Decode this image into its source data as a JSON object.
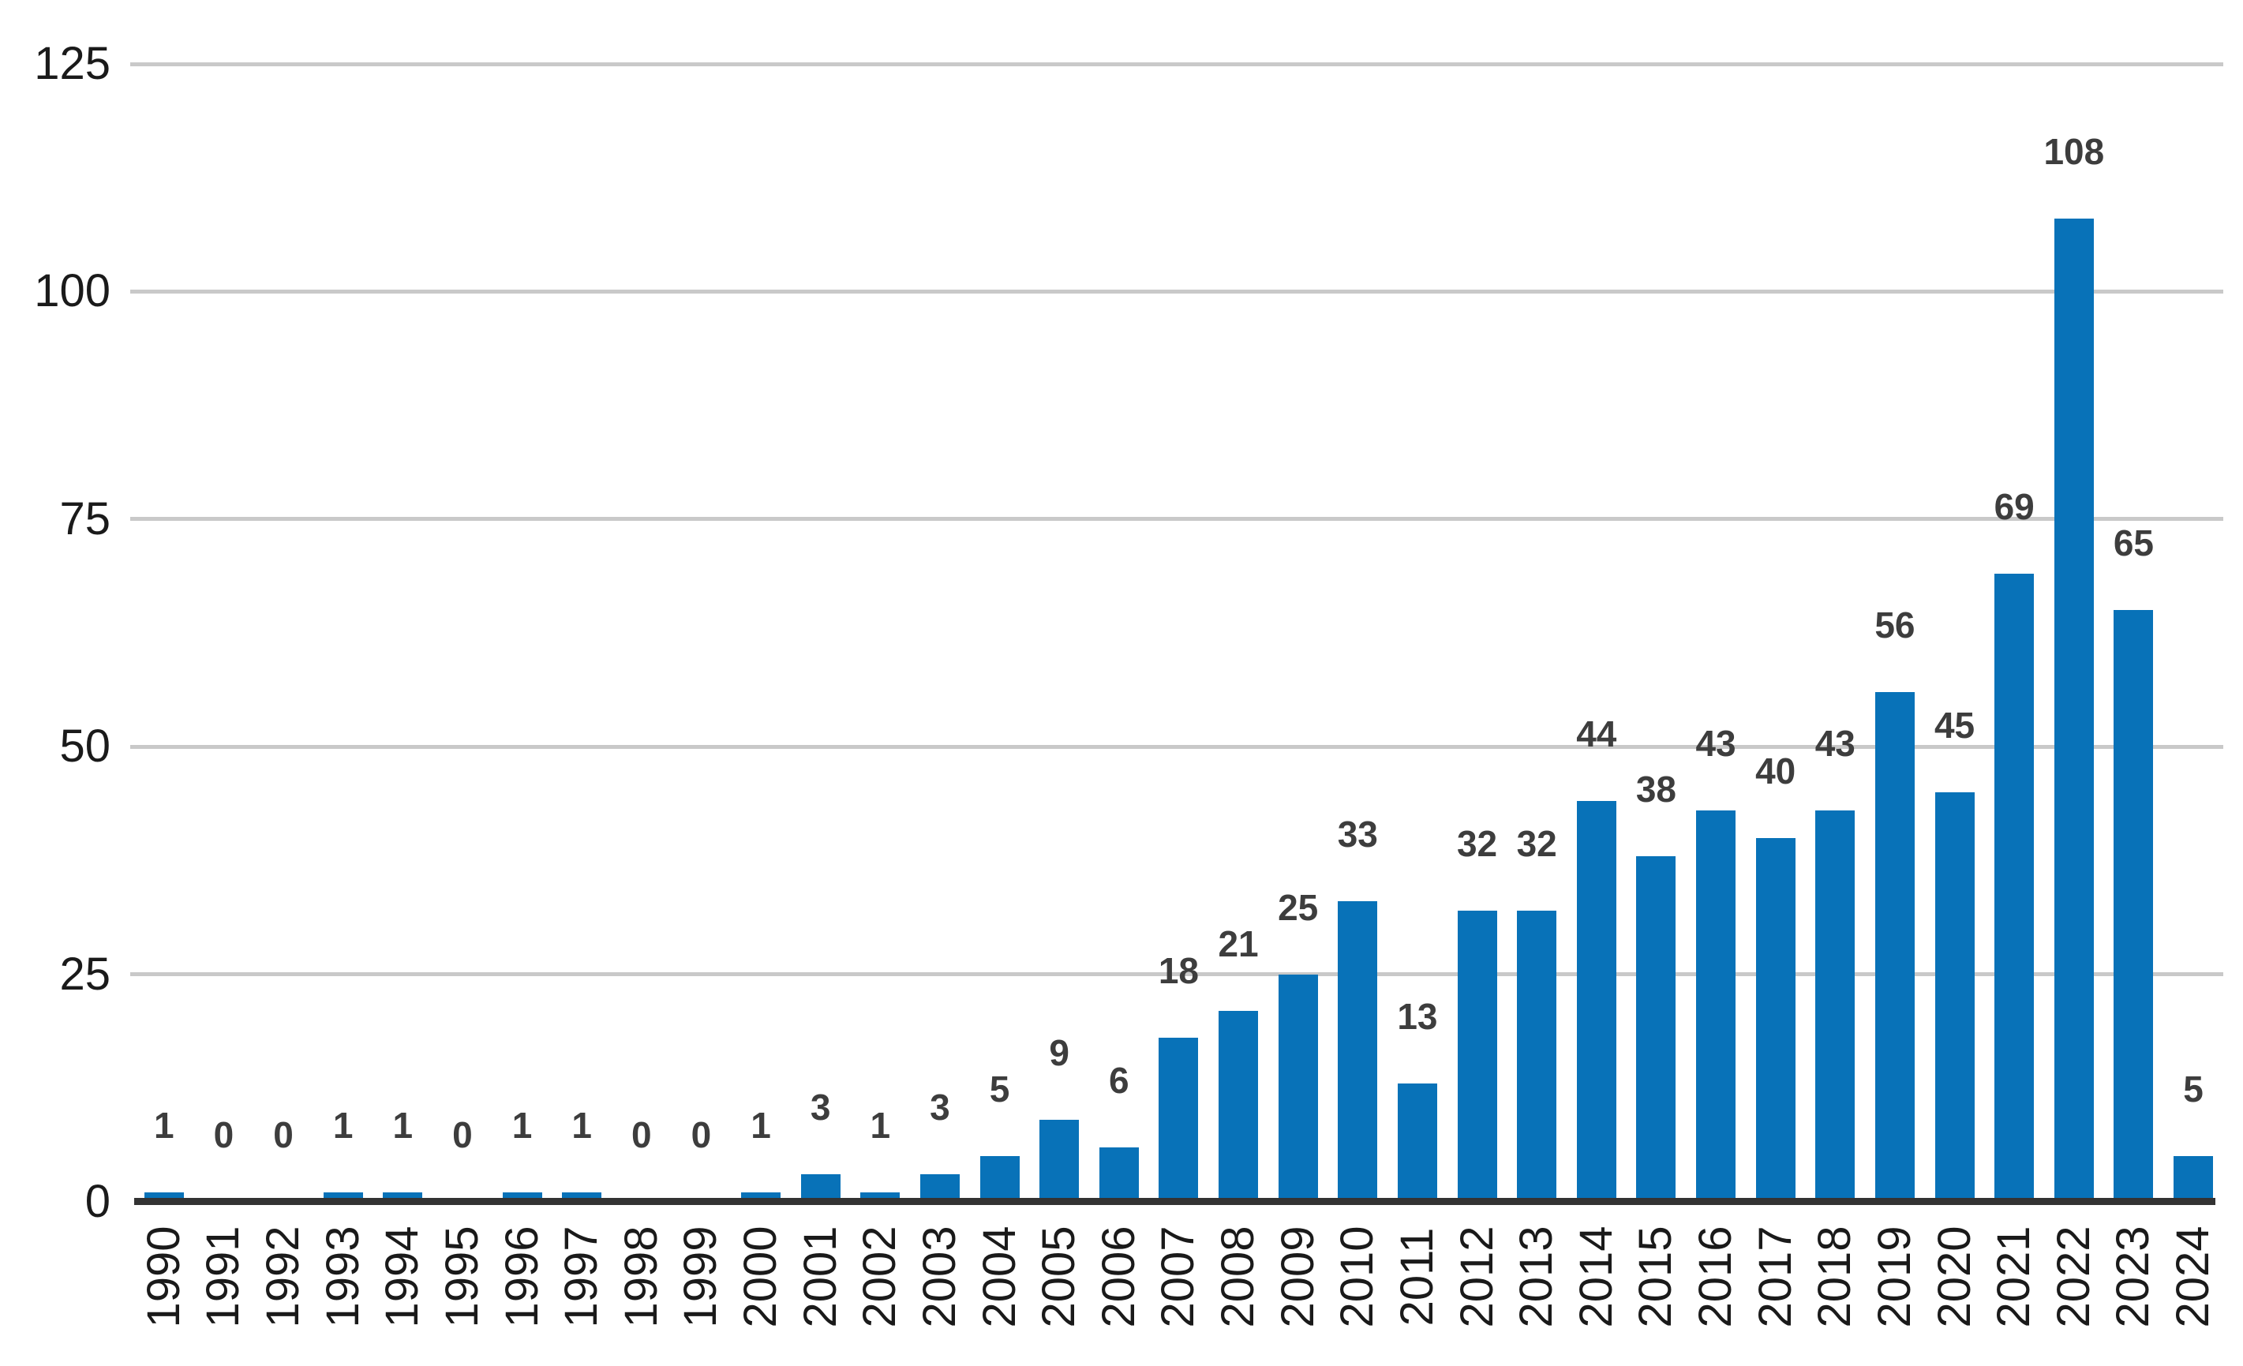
{
  "chart_data": {
    "type": "bar",
    "title": "",
    "xlabel": "",
    "ylabel": "",
    "categories": [
      "1990",
      "1991",
      "1992",
      "1993",
      "1994",
      "1995",
      "1996",
      "1997",
      "1998",
      "1999",
      "2000",
      "2001",
      "2002",
      "2003",
      "2004",
      "2005",
      "2006",
      "2007",
      "2008",
      "2009",
      "2010",
      "2011",
      "2012",
      "2013",
      "2014",
      "2015",
      "2016",
      "2017",
      "2018",
      "2019",
      "2020",
      "2021",
      "2022",
      "2023",
      "2024"
    ],
    "values": [
      1,
      0,
      0,
      1,
      1,
      0,
      1,
      1,
      0,
      0,
      1,
      3,
      1,
      3,
      5,
      9,
      6,
      18,
      21,
      25,
      33,
      13,
      32,
      32,
      44,
      38,
      43,
      40,
      43,
      56,
      45,
      69,
      108,
      65,
      5
    ],
    "y_ticks": [
      0,
      25,
      50,
      75,
      100,
      125
    ],
    "ylim": [
      0,
      125
    ],
    "grid": "horizontal",
    "legend": "none",
    "value_labels_shown": true,
    "colors": {
      "bar": "#0872b8",
      "gridline": "#c9c9c9",
      "axis_line": "#333333",
      "value_label": "#3d3d3d",
      "tick_label": "#1a1a1a",
      "background": "#ffffff"
    }
  }
}
